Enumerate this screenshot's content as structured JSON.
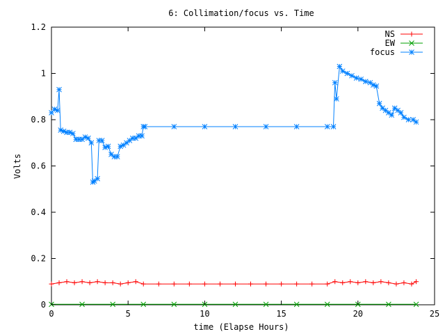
{
  "chart_data": {
    "type": "line",
    "title": "6: Collimation/focus vs. Time",
    "xlabel": "time (Elapse Hours)",
    "ylabel": "Volts",
    "xlim": [
      0,
      25
    ],
    "ylim": [
      0,
      1.2
    ],
    "xticks": [
      0,
      5,
      10,
      15,
      20,
      25
    ],
    "xtick_labels": [
      "0",
      "5",
      "10",
      "15",
      "20",
      "25"
    ],
    "yticks": [
      0,
      0.2,
      0.4,
      0.6,
      0.8,
      1.0,
      1.2
    ],
    "ytick_labels": [
      "0",
      "0.2",
      "0.4",
      "0.6",
      "0.8",
      "1",
      "1.2"
    ],
    "grid": false,
    "legend_position": "top-right",
    "series": [
      {
        "name": "NS",
        "color": "#ff0000",
        "marker": "plus",
        "x": [
          0,
          0.5,
          1,
          1.5,
          2,
          2.5,
          3,
          3.5,
          4,
          4.5,
          5,
          5.5,
          6,
          7,
          8,
          9,
          10,
          11,
          12,
          13,
          14,
          15,
          16,
          17,
          18,
          18.5,
          19,
          19.5,
          20,
          20.5,
          21,
          21.5,
          22,
          22.5,
          23,
          23.5,
          23.8
        ],
        "y": [
          0.09,
          0.095,
          0.1,
          0.095,
          0.1,
          0.095,
          0.1,
          0.095,
          0.095,
          0.09,
          0.095,
          0.1,
          0.09,
          0.09,
          0.09,
          0.09,
          0.09,
          0.09,
          0.09,
          0.09,
          0.09,
          0.09,
          0.09,
          0.09,
          0.09,
          0.1,
          0.095,
          0.1,
          0.095,
          0.1,
          0.095,
          0.1,
          0.095,
          0.09,
          0.095,
          0.09,
          0.1
        ]
      },
      {
        "name": "EW",
        "color": "#00a000",
        "marker": "cross",
        "x": [
          0,
          2,
          4,
          6,
          8,
          10,
          12,
          14,
          16,
          18,
          20,
          22,
          23.8
        ],
        "y": [
          0.002,
          0.002,
          0.002,
          0.002,
          0.002,
          0.002,
          0.002,
          0.002,
          0.002,
          0.002,
          0.002,
          0.002,
          0.002
        ]
      },
      {
        "name": "focus",
        "color": "#0080ff",
        "marker": "star",
        "x": [
          0,
          0.2,
          0.4,
          0.5,
          0.6,
          0.8,
          1.0,
          1.2,
          1.4,
          1.6,
          1.8,
          2.0,
          2.2,
          2.4,
          2.6,
          2.7,
          2.8,
          3.0,
          3.1,
          3.3,
          3.5,
          3.7,
          3.9,
          4.1,
          4.3,
          4.5,
          4.7,
          4.9,
          5.1,
          5.3,
          5.5,
          5.7,
          5.9,
          6.0,
          6.1,
          8,
          10,
          12,
          14,
          16,
          18,
          18.4,
          18.5,
          18.6,
          18.8,
          19.0,
          19.3,
          19.6,
          19.9,
          20.2,
          20.5,
          20.8,
          21.0,
          21.2,
          21.4,
          21.6,
          21.8,
          22.0,
          22.2,
          22.4,
          22.6,
          22.8,
          23.0,
          23.3,
          23.6,
          23.8
        ],
        "y": [
          0.83,
          0.845,
          0.84,
          0.93,
          0.755,
          0.75,
          0.745,
          0.745,
          0.74,
          0.715,
          0.715,
          0.715,
          0.725,
          0.72,
          0.7,
          0.53,
          0.535,
          0.545,
          0.71,
          0.71,
          0.68,
          0.685,
          0.65,
          0.64,
          0.64,
          0.685,
          0.69,
          0.7,
          0.71,
          0.72,
          0.72,
          0.73,
          0.73,
          0.77,
          0.77,
          0.77,
          0.77,
          0.77,
          0.77,
          0.77,
          0.77,
          0.77,
          0.96,
          0.89,
          1.03,
          1.01,
          1.0,
          0.99,
          0.98,
          0.975,
          0.965,
          0.96,
          0.95,
          0.945,
          0.87,
          0.85,
          0.84,
          0.83,
          0.82,
          0.85,
          0.84,
          0.83,
          0.81,
          0.8,
          0.8,
          0.79
        ]
      }
    ]
  }
}
